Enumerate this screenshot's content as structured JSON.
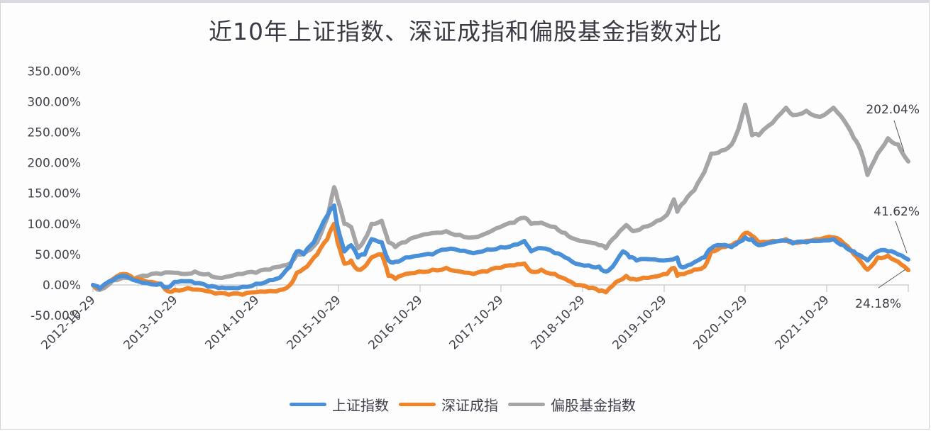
{
  "title": "近10年上证指数、深证成指和偏股基金指数对比",
  "chart_data": {
    "type": "line",
    "title": "近10年上证指数、深证成指和偏股基金指数对比",
    "xlabel": "",
    "ylabel": "",
    "ylim": [
      -50,
      350
    ],
    "y_ticks": [
      "-50.00%",
      "0.00%",
      "50.00%",
      "100.00%",
      "150.00%",
      "200.00%",
      "250.00%",
      "300.00%",
      "350.00%"
    ],
    "y_tick_values": [
      -50,
      0,
      50,
      100,
      150,
      200,
      250,
      300,
      350
    ],
    "x_ticks": [
      "2012-10-29",
      "2013-10-29",
      "2014-10-29",
      "2015-10-29",
      "2016-10-29",
      "2017-10-29",
      "2018-10-29",
      "2019-10-29",
      "2020-10-29",
      "2021-10-29"
    ],
    "x_unit_note": "x values are years elapsed since 2012-10-29",
    "grid": false,
    "legend_position": "bottom",
    "annotations": [
      {
        "text": "202.04%",
        "series": "偏股基金指数"
      },
      {
        "text": "41.62%",
        "series": "上证指数"
      },
      {
        "text": "24.18%",
        "series": "深证成指"
      }
    ],
    "series": [
      {
        "name": "上证指数",
        "color": "#4a90d9",
        "points": [
          [
            0,
            0
          ],
          [
            0.1,
            -6
          ],
          [
            0.3,
            8
          ],
          [
            0.45,
            15
          ],
          [
            0.6,
            8
          ],
          [
            0.8,
            3
          ],
          [
            1.0,
            2
          ],
          [
            1.1,
            -4
          ],
          [
            1.2,
            5
          ],
          [
            1.35,
            6
          ],
          [
            1.5,
            3
          ],
          [
            1.7,
            -3
          ],
          [
            1.85,
            -5
          ],
          [
            2.0,
            -5
          ],
          [
            2.2,
            -3
          ],
          [
            2.4,
            2
          ],
          [
            2.6,
            8
          ],
          [
            2.75,
            12
          ],
          [
            2.9,
            30
          ],
          [
            3.0,
            55
          ],
          [
            3.1,
            50
          ],
          [
            3.25,
            70
          ],
          [
            3.4,
            105
          ],
          [
            3.5,
            125
          ],
          [
            3.55,
            130
          ],
          [
            3.6,
            95
          ],
          [
            3.7,
            55
          ],
          [
            3.8,
            65
          ],
          [
            3.9,
            45
          ],
          [
            4.0,
            50
          ],
          [
            4.1,
            75
          ],
          [
            4.25,
            70
          ],
          [
            4.35,
            40
          ],
          [
            4.45,
            38
          ],
          [
            4.6,
            45
          ],
          [
            4.8,
            48
          ],
          [
            5.0,
            50
          ],
          [
            5.2,
            58
          ],
          [
            5.4,
            56
          ],
          [
            5.6,
            52
          ],
          [
            5.8,
            58
          ],
          [
            6.0,
            62
          ],
          [
            6.2,
            66
          ],
          [
            6.35,
            72
          ],
          [
            6.45,
            55
          ],
          [
            6.6,
            60
          ],
          [
            6.8,
            52
          ],
          [
            6.95,
            45
          ],
          [
            7.1,
            35
          ],
          [
            7.3,
            32
          ],
          [
            7.45,
            30
          ],
          [
            7.55,
            22
          ],
          [
            7.65,
            30
          ],
          [
            7.8,
            55
          ],
          [
            7.9,
            45
          ],
          [
            8.0,
            40
          ],
          [
            8.2,
            42
          ],
          [
            8.4,
            40
          ],
          [
            8.6,
            45
          ],
          [
            8.65,
            30
          ],
          [
            8.75,
            32
          ],
          [
            8.9,
            40
          ],
          [
            9.0,
            45
          ],
          [
            9.1,
            60
          ],
          [
            9.25,
            65
          ],
          [
            9.4,
            62
          ],
          [
            9.5,
            70
          ],
          [
            9.6,
            78
          ],
          [
            9.7,
            75
          ],
          [
            9.8,
            65
          ],
          [
            10.0,
            70
          ],
          [
            10.2,
            72
          ],
          [
            10.3,
            68
          ],
          [
            10.5,
            70
          ],
          [
            10.7,
            72
          ],
          [
            10.9,
            75
          ],
          [
            11.05,
            65
          ],
          [
            11.2,
            55
          ],
          [
            11.3,
            48
          ],
          [
            11.4,
            40
          ],
          [
            11.55,
            55
          ],
          [
            11.7,
            55
          ],
          [
            11.85,
            50
          ],
          [
            12.0,
            41.62
          ]
        ]
      },
      {
        "name": "深证成指",
        "color": "#f0842a",
        "points": [
          [
            0,
            0
          ],
          [
            0.1,
            -6
          ],
          [
            0.3,
            10
          ],
          [
            0.45,
            18
          ],
          [
            0.6,
            10
          ],
          [
            0.8,
            5
          ],
          [
            1.0,
            2
          ],
          [
            1.1,
            -10
          ],
          [
            1.2,
            -8
          ],
          [
            1.4,
            -5
          ],
          [
            1.6,
            -8
          ],
          [
            1.8,
            -14
          ],
          [
            2.0,
            -16
          ],
          [
            2.2,
            -16
          ],
          [
            2.4,
            -12
          ],
          [
            2.6,
            -10
          ],
          [
            2.75,
            -8
          ],
          [
            2.9,
            0
          ],
          [
            3.0,
            20
          ],
          [
            3.15,
            30
          ],
          [
            3.3,
            50
          ],
          [
            3.45,
            75
          ],
          [
            3.55,
            100
          ],
          [
            3.6,
            70
          ],
          [
            3.7,
            35
          ],
          [
            3.8,
            40
          ],
          [
            3.9,
            25
          ],
          [
            4.0,
            30
          ],
          [
            4.1,
            45
          ],
          [
            4.25,
            50
          ],
          [
            4.35,
            15
          ],
          [
            4.45,
            10
          ],
          [
            4.6,
            18
          ],
          [
            4.8,
            22
          ],
          [
            5.0,
            25
          ],
          [
            5.2,
            28
          ],
          [
            5.4,
            22
          ],
          [
            5.6,
            18
          ],
          [
            5.8,
            22
          ],
          [
            6.0,
            28
          ],
          [
            6.2,
            32
          ],
          [
            6.35,
            35
          ],
          [
            6.45,
            22
          ],
          [
            6.6,
            25
          ],
          [
            6.8,
            18
          ],
          [
            6.95,
            10
          ],
          [
            7.1,
            0
          ],
          [
            7.3,
            -5
          ],
          [
            7.45,
            -10
          ],
          [
            7.55,
            -12
          ],
          [
            7.7,
            5
          ],
          [
            7.85,
            15
          ],
          [
            7.95,
            10
          ],
          [
            8.1,
            12
          ],
          [
            8.3,
            14
          ],
          [
            8.45,
            18
          ],
          [
            8.55,
            28
          ],
          [
            8.6,
            15
          ],
          [
            8.7,
            18
          ],
          [
            8.85,
            25
          ],
          [
            9.0,
            30
          ],
          [
            9.1,
            55
          ],
          [
            9.25,
            62
          ],
          [
            9.4,
            65
          ],
          [
            9.5,
            70
          ],
          [
            9.6,
            85
          ],
          [
            9.7,
            80
          ],
          [
            9.8,
            70
          ],
          [
            10.0,
            72
          ],
          [
            10.2,
            75
          ],
          [
            10.3,
            70
          ],
          [
            10.5,
            72
          ],
          [
            10.7,
            75
          ],
          [
            10.9,
            78
          ],
          [
            11.05,
            68
          ],
          [
            11.2,
            50
          ],
          [
            11.3,
            38
          ],
          [
            11.4,
            25
          ],
          [
            11.55,
            45
          ],
          [
            11.7,
            48
          ],
          [
            11.85,
            38
          ],
          [
            12.0,
            24.18
          ]
        ]
      },
      {
        "name": "偏股基金指数",
        "color": "#a5a5a7",
        "points": [
          [
            0,
            0
          ],
          [
            0.1,
            -8
          ],
          [
            0.3,
            8
          ],
          [
            0.45,
            12
          ],
          [
            0.6,
            10
          ],
          [
            0.8,
            15
          ],
          [
            1.0,
            18
          ],
          [
            1.2,
            20
          ],
          [
            1.35,
            18
          ],
          [
            1.5,
            22
          ],
          [
            1.7,
            18
          ],
          [
            1.85,
            12
          ],
          [
            2.0,
            14
          ],
          [
            2.2,
            18
          ],
          [
            2.4,
            20
          ],
          [
            2.6,
            25
          ],
          [
            2.75,
            30
          ],
          [
            2.9,
            35
          ],
          [
            3.0,
            50
          ],
          [
            3.15,
            55
          ],
          [
            3.3,
            70
          ],
          [
            3.45,
            110
          ],
          [
            3.55,
            160
          ],
          [
            3.6,
            140
          ],
          [
            3.7,
            100
          ],
          [
            3.8,
            95
          ],
          [
            3.9,
            60
          ],
          [
            4.0,
            75
          ],
          [
            4.1,
            100
          ],
          [
            4.25,
            105
          ],
          [
            4.35,
            70
          ],
          [
            4.45,
            62
          ],
          [
            4.6,
            70
          ],
          [
            4.8,
            80
          ],
          [
            5.0,
            85
          ],
          [
            5.2,
            88
          ],
          [
            5.4,
            82
          ],
          [
            5.6,
            78
          ],
          [
            5.8,
            85
          ],
          [
            6.0,
            95
          ],
          [
            6.2,
            102
          ],
          [
            6.35,
            110
          ],
          [
            6.45,
            100
          ],
          [
            6.6,
            102
          ],
          [
            6.8,
            95
          ],
          [
            6.95,
            85
          ],
          [
            7.1,
            75
          ],
          [
            7.3,
            70
          ],
          [
            7.45,
            65
          ],
          [
            7.55,
            60
          ],
          [
            7.7,
            80
          ],
          [
            7.85,
            98
          ],
          [
            7.95,
            88
          ],
          [
            8.1,
            95
          ],
          [
            8.3,
            105
          ],
          [
            8.45,
            115
          ],
          [
            8.55,
            140
          ],
          [
            8.6,
            120
          ],
          [
            8.7,
            135
          ],
          [
            8.85,
            155
          ],
          [
            9.0,
            185
          ],
          [
            9.1,
            215
          ],
          [
            9.25,
            220
          ],
          [
            9.4,
            230
          ],
          [
            9.5,
            255
          ],
          [
            9.6,
            295
          ],
          [
            9.7,
            245
          ],
          [
            9.8,
            245
          ],
          [
            10.0,
            265
          ],
          [
            10.2,
            290
          ],
          [
            10.3,
            278
          ],
          [
            10.5,
            285
          ],
          [
            10.7,
            275
          ],
          [
            10.9,
            290
          ],
          [
            11.05,
            270
          ],
          [
            11.2,
            240
          ],
          [
            11.3,
            220
          ],
          [
            11.4,
            180
          ],
          [
            11.55,
            215
          ],
          [
            11.7,
            240
          ],
          [
            11.85,
            230
          ],
          [
            12.0,
            202.04
          ]
        ]
      }
    ]
  },
  "legend": {
    "items": [
      {
        "label": "上证指数",
        "color": "#4a90d9"
      },
      {
        "label": "深证成指",
        "color": "#f0842a"
      },
      {
        "label": "偏股基金指数",
        "color": "#a5a5a7"
      }
    ]
  }
}
